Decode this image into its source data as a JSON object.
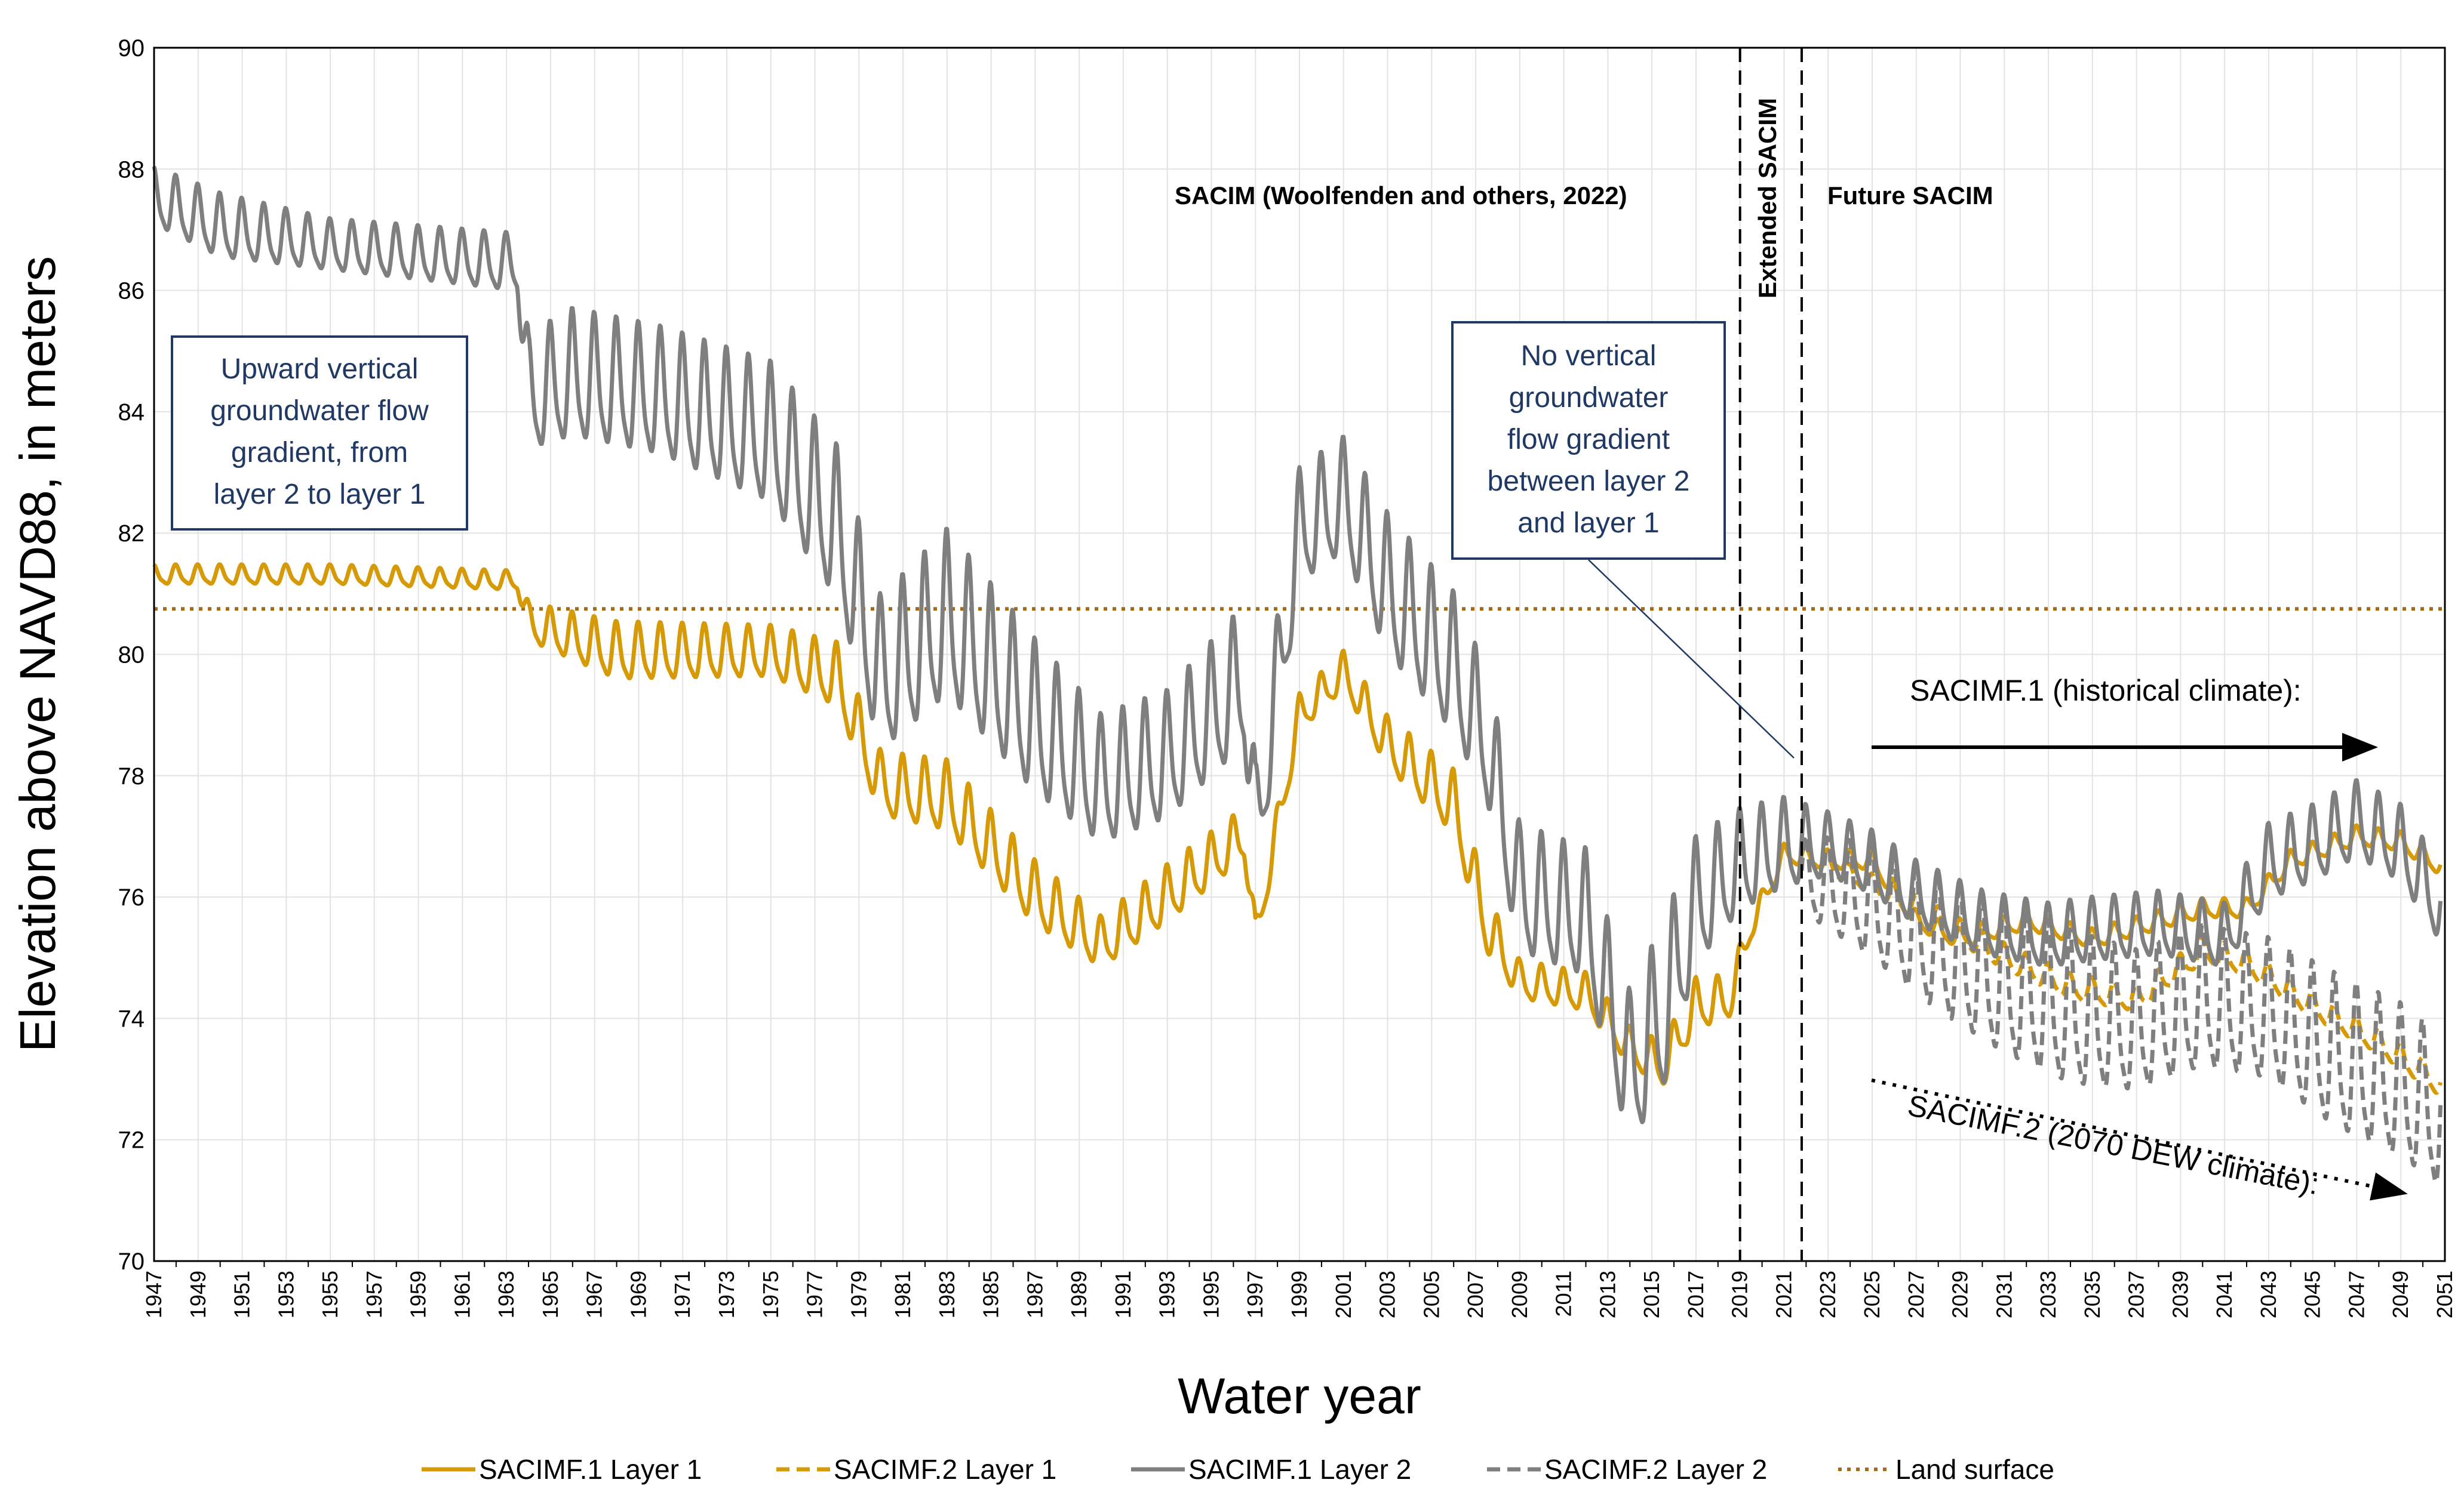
{
  "chart_data": {
    "type": "line",
    "ylabel": "Elevation above NAVD88, in meters",
    "xlabel": "Water year",
    "xlim": [
      1947,
      2051
    ],
    "ylim": [
      70,
      90
    ],
    "yticks": [
      70,
      72,
      74,
      76,
      78,
      80,
      82,
      84,
      86,
      88,
      90
    ],
    "xticks": [
      "1947",
      "1949",
      "1951",
      "1953",
      "1955",
      "1957",
      "1959",
      "1961",
      "1963",
      "1965",
      "1967",
      "1969",
      "1971",
      "1973",
      "1975",
      "1977",
      "1979",
      "1981",
      "1983",
      "1985",
      "1987",
      "1989",
      "1991",
      "1993",
      "1995",
      "1997",
      "1999",
      "2001",
      "2003",
      "2005",
      "2007",
      "2009",
      "2011",
      "2013",
      "2015",
      "2017",
      "2019",
      "2021",
      "2023",
      "2025",
      "2027",
      "2029",
      "2031",
      "2033",
      "2035",
      "2037",
      "2039",
      "2041",
      "2043",
      "2045",
      "2047",
      "2049",
      "2051"
    ],
    "grid": "vertical-and-horizontal",
    "legend_position": "bottom",
    "period_labels": {
      "sacim": "SACIM (Woolfenden and others, 2022)",
      "extended": "Extended SACIM",
      "future": "Future SACIM"
    },
    "period_dividers": [
      2019.0,
      2021.8
    ],
    "annotations": {
      "upward_box": [
        "Upward vertical",
        "groundwater flow",
        "gradient, from",
        "layer 2 to layer 1"
      ],
      "no_gradient_box": [
        "No vertical",
        "groundwater",
        "flow gradient",
        "between layer 2",
        "and layer 1"
      ],
      "sacimf1_label": "SACIMF.1 (historical climate):",
      "sacimf2_label": "SACIMF.2 (2070 DEW climate):"
    },
    "land_surface": 80.75,
    "series": [
      {
        "name": "SACIMF.1 Layer 1",
        "style": "solid",
        "color": "#d69a06",
        "x": [
          1947,
          1955,
          1963.5,
          1964,
          1968,
          1975,
          1978,
          1980,
          1983,
          1987,
          1990,
          1993,
          1996.5,
          1997,
          1999,
          2001,
          2003,
          2006,
          2007.5,
          2009,
          2012,
          2014,
          2015.5,
          2017,
          2018.5,
          2019.5,
          2021,
          2023,
          2025,
          2027,
          2029,
          2032,
          2035,
          2038,
          2040,
          2042,
          2044,
          2047,
          2049,
          2050.8
        ],
        "y": [
          81.3,
          81.3,
          81.2,
          80.5,
          80.0,
          80.0,
          79.6,
          77.8,
          77.6,
          76.0,
          75.2,
          76.0,
          77.0,
          75.3,
          79.0,
          79.7,
          78.5,
          77.5,
          75.5,
          74.6,
          74.4,
          73.5,
          73.2,
          74.2,
          74.3,
          75.5,
          76.7,
          76.6,
          76.6,
          75.6,
          75.3,
          75.6,
          75.3,
          75.6,
          75.8,
          75.8,
          76.6,
          77.0,
          76.9,
          76.5
        ],
        "amp": [
          0.15,
          0.15,
          0.15,
          0.3,
          0.45,
          0.4,
          0.5,
          0.5,
          0.55,
          0.5,
          0.4,
          0.45,
          0.4,
          0.3,
          0.3,
          0.3,
          0.4,
          0.5,
          0.45,
          0.3,
          0.3,
          0.3,
          0.35,
          0.4,
          0.35,
          0.2,
          0.15,
          0.15,
          0.15,
          0.15,
          0.15,
          0.15,
          0.15,
          0.15,
          0.15,
          0.15,
          0.15,
          0.15,
          0.15,
          0.15
        ]
      },
      {
        "name": "SACIMF.2 Layer 1",
        "style": "dashed",
        "color": "#d69a06",
        "x": [
          2021.8,
          2025,
          2028,
          2031,
          2034,
          2037,
          2040,
          2042,
          2045,
          2048,
          2050.8
        ],
        "y": [
          76.7,
          76.2,
          75.6,
          75.0,
          74.5,
          74.3,
          75.1,
          74.9,
          74.2,
          73.6,
          72.9
        ],
        "amp": [
          0.15,
          0.15,
          0.2,
          0.2,
          0.2,
          0.2,
          0.2,
          0.2,
          0.2,
          0.2,
          0.2
        ]
      },
      {
        "name": "SACIMF.1 Layer 2",
        "style": "solid",
        "color": "#7f7f7f",
        "x": [
          1947,
          1950,
          1955,
          1963.5,
          1964,
          1966,
          1970,
          1975,
          1978,
          1980,
          1983,
          1987,
          1990,
          1993,
          1996.5,
          1997,
          1999,
          2001,
          2003,
          2006,
          2007.5,
          2009,
          2012,
          2014,
          2015.5,
          2017,
          2019,
          2021,
          2023,
          2025,
          2027,
          2030,
          2033,
          2035,
          2038,
          2041,
          2043,
          2045,
          2047,
          2049,
          2050.8
        ],
        "y": [
          87.5,
          87.0,
          86.7,
          86.4,
          84.2,
          84.5,
          84.2,
          83.5,
          82.0,
          79.5,
          80.5,
          78.8,
          77.8,
          78.2,
          79.5,
          77.0,
          82.0,
          82.5,
          81.0,
          79.7,
          78.5,
          76.0,
          75.6,
          73.0,
          74.0,
          75.8,
          76.5,
          76.8,
          76.8,
          76.5,
          76.0,
          75.5,
          75.3,
          75.4,
          75.5,
          75.3,
          76.5,
          76.8,
          77.2,
          76.8,
          75.8
        ],
        "amp": [
          0.45,
          0.5,
          0.4,
          0.45,
          0.9,
          1.0,
          1.0,
          1.1,
          1.2,
          1.2,
          1.3,
          1.2,
          1.0,
          1.0,
          1.1,
          1.0,
          0.9,
          0.9,
          1.1,
          1.1,
          1.0,
          1.0,
          1.0,
          1.2,
          1.3,
          1.0,
          0.8,
          0.7,
          0.5,
          0.5,
          0.5,
          0.5,
          0.5,
          0.5,
          0.5,
          0.5,
          0.6,
          0.6,
          0.6,
          0.6,
          0.6
        ]
      },
      {
        "name": "SACIMF.2 Layer 2",
        "style": "dashed",
        "color": "#7f7f7f",
        "x": [
          2021.8,
          2025,
          2028,
          2031,
          2034,
          2037,
          2040,
          2043,
          2046,
          2049,
          2050.8
        ],
        "y": [
          76.3,
          75.8,
          75.1,
          74.5,
          74.0,
          73.8,
          74.2,
          74.0,
          73.3,
          72.8,
          72.3
        ],
        "amp": [
          0.6,
          0.9,
          1.1,
          1.2,
          1.2,
          1.1,
          1.1,
          1.1,
          1.2,
          1.2,
          1.2
        ]
      },
      {
        "name": "Land surface",
        "style": "dotted",
        "color": "#a56a16",
        "x": [
          1947,
          2051
        ],
        "y": [
          80.75,
          80.75
        ],
        "amp": [
          0,
          0
        ]
      }
    ]
  }
}
